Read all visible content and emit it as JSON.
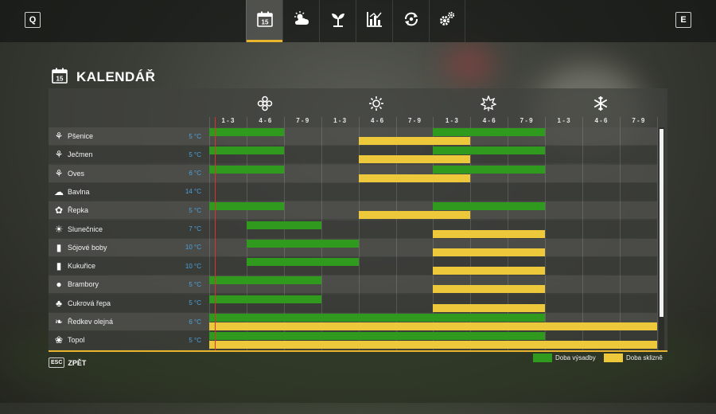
{
  "topbar": {
    "left_key": "Q",
    "right_key": "E",
    "tabs": [
      {
        "icon": "calendar-icon",
        "day": "15",
        "active": true
      },
      {
        "icon": "weather-icon",
        "active": false
      },
      {
        "icon": "seedling-icon",
        "active": false
      },
      {
        "icon": "chart-icon",
        "active": false
      },
      {
        "icon": "cycle-icon",
        "active": false
      },
      {
        "icon": "gears-icon",
        "active": false
      }
    ]
  },
  "page": {
    "title": "KALENDÁŘ",
    "calendar_day": "15"
  },
  "seasons": [
    {
      "icon": "spring-flower-icon"
    },
    {
      "icon": "summer-sun-icon"
    },
    {
      "icon": "autumn-leaf-icon"
    },
    {
      "icon": "winter-snowflake-icon"
    }
  ],
  "months": [
    "1 - 3",
    "4 - 6",
    "7 - 9",
    "1 - 3",
    "4 - 6",
    "7 - 9",
    "1 - 3",
    "4 - 6",
    "7 - 9",
    "1 - 3",
    "4 - 6",
    "7 - 9"
  ],
  "crops": [
    {
      "name": "Pšenice",
      "temp": "5 °C",
      "icon": "wheat-icon",
      "sow": [
        [
          0,
          2
        ],
        [
          6,
          9
        ]
      ],
      "harvest": [
        [
          4,
          7
        ]
      ]
    },
    {
      "name": "Ječmen",
      "temp": "5 °C",
      "icon": "barley-icon",
      "sow": [
        [
          0,
          2
        ],
        [
          6,
          9
        ]
      ],
      "harvest": [
        [
          4,
          7
        ]
      ]
    },
    {
      "name": "Oves",
      "temp": "6 °C",
      "icon": "oat-icon",
      "sow": [
        [
          0,
          2
        ],
        [
          6,
          9
        ]
      ],
      "harvest": [
        [
          4,
          7
        ]
      ]
    },
    {
      "name": "Bavlna",
      "temp": "14 °C",
      "icon": "cotton-icon",
      "sow": [],
      "harvest": []
    },
    {
      "name": "Řepka",
      "temp": "5 °C",
      "icon": "canola-icon",
      "sow": [
        [
          0,
          2
        ],
        [
          6,
          9
        ]
      ],
      "harvest": [
        [
          4,
          7
        ]
      ]
    },
    {
      "name": "Slunečnice",
      "temp": "7 °C",
      "icon": "sunflower-icon",
      "sow": [
        [
          1,
          3
        ]
      ],
      "harvest": [
        [
          6,
          9
        ]
      ]
    },
    {
      "name": "Sójové boby",
      "temp": "10 °C",
      "icon": "soybean-icon",
      "sow": [
        [
          1,
          4
        ]
      ],
      "harvest": [
        [
          6,
          9
        ]
      ]
    },
    {
      "name": "Kukuřice",
      "temp": "10 °C",
      "icon": "corn-icon",
      "sow": [
        [
          1,
          4
        ]
      ],
      "harvest": [
        [
          6,
          9
        ]
      ]
    },
    {
      "name": "Brambory",
      "temp": "5 °C",
      "icon": "potato-icon",
      "sow": [
        [
          0,
          3
        ]
      ],
      "harvest": [
        [
          6,
          9
        ]
      ]
    },
    {
      "name": "Cukrová řepa",
      "temp": "5 °C",
      "icon": "sugarbeet-icon",
      "sow": [
        [
          0,
          3
        ]
      ],
      "harvest": [
        [
          6,
          9
        ]
      ]
    },
    {
      "name": "Ředkev olejná",
      "temp": "6 °C",
      "icon": "oilradish-icon",
      "sow": [
        [
          0,
          9
        ]
      ],
      "harvest": [
        [
          0,
          12
        ]
      ]
    },
    {
      "name": "Topol",
      "temp": "5 °C",
      "icon": "poplar-icon",
      "sow": [
        [
          0,
          9
        ]
      ],
      "harvest": [
        [
          0,
          12
        ]
      ]
    }
  ],
  "footer": {
    "esc_key": "ESC",
    "back_label": "ZPĚT"
  },
  "legend": [
    {
      "label": "Doba výsadby",
      "color": "#2f9a1d"
    },
    {
      "label": "Doba sklizně",
      "color": "#ecc83a"
    }
  ],
  "colors": {
    "accent": "#e8b52c",
    "sow": "#2f9a1d",
    "harvest": "#ecc83a",
    "temp": "#4aa3e0",
    "today_marker": "#d9332b"
  }
}
